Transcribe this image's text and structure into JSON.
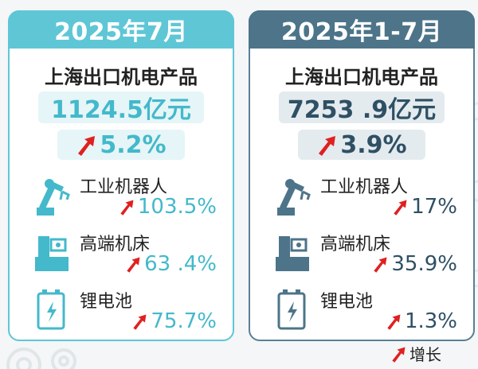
{
  "left": {
    "title": "2025年7月",
    "subtitle": "上海出口机电产品",
    "amount": "1124.5亿元",
    "total_growth": "5.2%",
    "items": [
      {
        "label": "工业机器人",
        "value": "103.5%",
        "icon": "robot-arm-icon"
      },
      {
        "label": "高端机床",
        "value": "63 .4%",
        "icon": "machine-tool-icon"
      },
      {
        "label": "锂电池",
        "value": "75.7%",
        "icon": "battery-icon"
      }
    ]
  },
  "right": {
    "title": "2025年1-7月",
    "subtitle": "上海出口机电产品",
    "amount": "7253 .9亿元",
    "total_growth": "3.9%",
    "items": [
      {
        "label": "工业机器人",
        "value": "17%",
        "icon": "robot-arm-icon"
      },
      {
        "label": "高端机床",
        "value": "35.9%",
        "icon": "machine-tool-icon"
      },
      {
        "label": "锂电池",
        "value": "1.3%",
        "icon": "battery-icon"
      }
    ]
  },
  "legend": {
    "label": "增长",
    "icon": "up-arrow-icon"
  },
  "colors": {
    "accent_light": "#5fc6d6",
    "accent_dark": "#4d7489",
    "arrow_red": "#e02020"
  }
}
